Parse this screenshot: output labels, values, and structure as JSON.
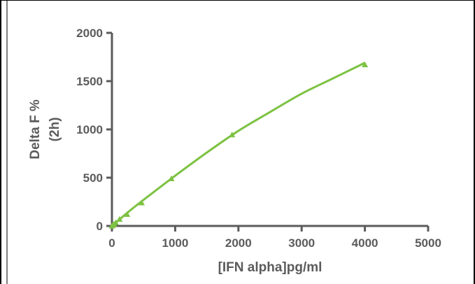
{
  "chart_data": {
    "type": "scatter",
    "xlabel": "[IFN alpha]pg/ml",
    "ylabel_lines": [
      "Delta F %",
      "(2h)"
    ],
    "xlim": [
      0,
      5000
    ],
    "ylim": [
      0,
      2000
    ],
    "xticks": [
      0,
      1000,
      2000,
      3000,
      4000,
      5000
    ],
    "yticks": [
      0,
      500,
      1000,
      1500,
      2000
    ],
    "grid": false,
    "series": [
      {
        "marker": "triangle",
        "color": "#7dc242",
        "x": [
          0,
          15,
          30,
          60,
          120,
          240,
          470,
          940,
          1900,
          4000
        ],
        "y": [
          0,
          8,
          18,
          35,
          70,
          120,
          240,
          490,
          945,
          1670
        ]
      }
    ],
    "fit_curve": {
      "color": "#7dc242",
      "x": [
        0,
        250,
        500,
        1000,
        1500,
        2000,
        2500,
        3000,
        3500,
        4000
      ],
      "y": [
        0,
        140,
        270,
        520,
        760,
        985,
        1180,
        1370,
        1530,
        1690
      ]
    }
  }
}
